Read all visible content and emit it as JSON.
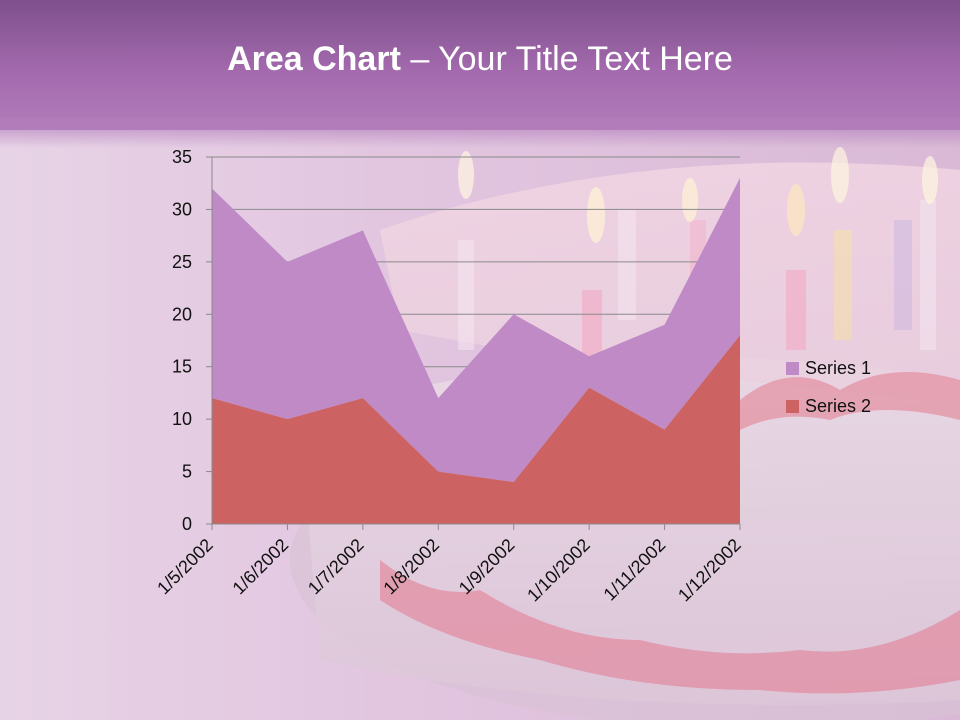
{
  "slide": {
    "title_bold": "Area Chart",
    "title_rest": " – Your Title Text Here"
  },
  "colors": {
    "series1": "#bf8ac6",
    "series2": "#cd6262"
  },
  "chart_data": {
    "type": "area",
    "stacked": true,
    "title": "",
    "xlabel": "",
    "ylabel": "",
    "categories": [
      "1/5/2002",
      "1/6/2002",
      "1/7/2002",
      "1/8/2002",
      "1/9/2002",
      "1/10/2002",
      "1/11/2002",
      "1/12/2002"
    ],
    "series": [
      {
        "name": "Series 1",
        "values": [
          20,
          15,
          16,
          7,
          16,
          3,
          10,
          15
        ]
      },
      {
        "name": "Series 2",
        "values": [
          12,
          10,
          12,
          5,
          4,
          13,
          9,
          18
        ]
      }
    ],
    "ylim": [
      0,
      35
    ],
    "yticks": [
      "0",
      "5",
      "10",
      "15",
      "20",
      "25",
      "30",
      "35"
    ],
    "grid": true,
    "legend": "right"
  }
}
